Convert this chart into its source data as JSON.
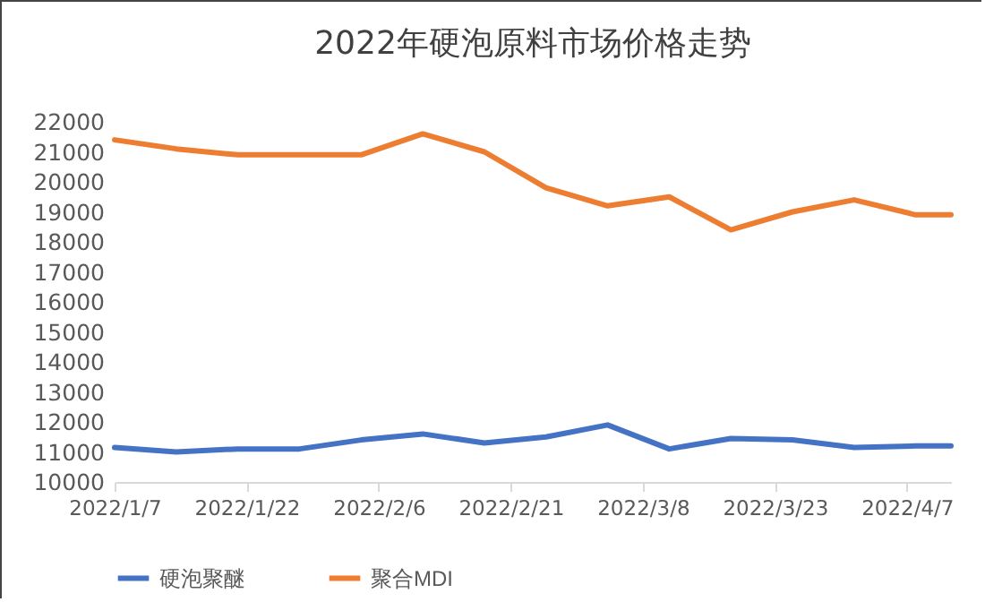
{
  "chart_data": {
    "type": "line",
    "title": "2022年硬泡原料市场价格走势",
    "x": [
      "2022-01-07",
      "2022-01-14",
      "2022-01-21",
      "2022-01-28",
      "2022-02-04",
      "2022-02-11",
      "2022-02-18",
      "2022-02-25",
      "2022-03-04",
      "2022-03-11",
      "2022-03-18",
      "2022-03-25",
      "2022-04-01",
      "2022-04-08",
      "2022-04-12"
    ],
    "series": [
      {
        "name": "硬泡聚醚",
        "color": "#4472c4",
        "values": [
          11150,
          11000,
          11100,
          11100,
          11400,
          11600,
          11300,
          11500,
          11900,
          11100,
          11450,
          11400,
          11150,
          11200,
          11200
        ]
      },
      {
        "name": "聚合MDI",
        "color": "#ed7d31",
        "values": [
          21400,
          21100,
          20900,
          20900,
          20900,
          21600,
          21000,
          19800,
          19200,
          19500,
          18400,
          19000,
          19400,
          18900,
          18900
        ]
      }
    ],
    "xlim": [
      "2022-01-07",
      "2022-04-12"
    ],
    "xticks": [
      {
        "value": "2022-01-07",
        "label": "2022/1/7"
      },
      {
        "value": "2022-01-22",
        "label": "2022/1/22"
      },
      {
        "value": "2022-02-06",
        "label": "2022/2/6"
      },
      {
        "value": "2022-02-21",
        "label": "2022/2/21"
      },
      {
        "value": "2022-03-08",
        "label": "2022/3/8"
      },
      {
        "value": "2022-03-23",
        "label": "2022/3/23"
      },
      {
        "value": "2022-04-07",
        "label": "2022/4/7"
      }
    ],
    "ylim": [
      10000,
      22000
    ],
    "yticks": [
      10000,
      11000,
      12000,
      13000,
      14000,
      15000,
      16000,
      17000,
      18000,
      19000,
      20000,
      21000,
      22000
    ],
    "grid": false,
    "legend": "bottom",
    "marker": "none",
    "line_style": "solid"
  }
}
